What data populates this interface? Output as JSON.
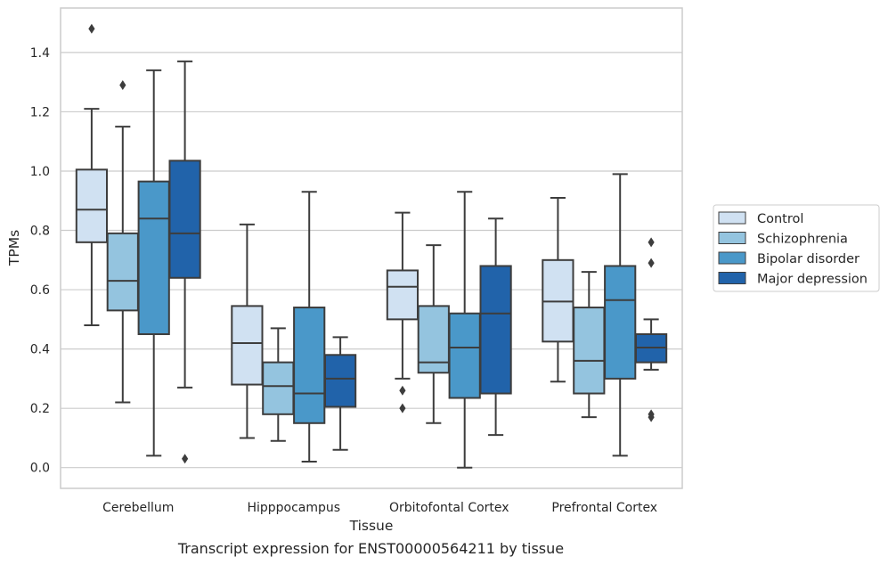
{
  "caption": "Transcript expression for ENST00000564211 by tissue",
  "chart_data": {
    "type": "box",
    "xlabel": "Tissue",
    "ylabel": "TPMs",
    "ylim": [
      -0.07,
      1.55
    ],
    "yticks": [
      "0.0",
      "0.2",
      "0.4",
      "0.6",
      "0.8",
      "1.0",
      "1.2",
      "1.4"
    ],
    "grid": true,
    "legend_position": "right",
    "categories": [
      "Cerebellum",
      "Hipppocampus",
      "Orbitofontal Cortex",
      "Prefrontal Cortex"
    ],
    "series": [
      {
        "name": "Control",
        "color": "#d0e1f2",
        "boxes": [
          {
            "whisker_low": 0.48,
            "q1": 0.76,
            "median": 0.87,
            "q3": 1.005,
            "whisker_high": 1.21,
            "outliers": [
              1.48
            ]
          },
          {
            "whisker_low": 0.1,
            "q1": 0.28,
            "median": 0.42,
            "q3": 0.545,
            "whisker_high": 0.82,
            "outliers": []
          },
          {
            "whisker_low": 0.3,
            "q1": 0.5,
            "median": 0.61,
            "q3": 0.665,
            "whisker_high": 0.86,
            "outliers": [
              0.26,
              0.2
            ]
          },
          {
            "whisker_low": 0.29,
            "q1": 0.425,
            "median": 0.56,
            "q3": 0.7,
            "whisker_high": 0.91,
            "outliers": []
          }
        ]
      },
      {
        "name": "Schizophrenia",
        "color": "#94c4df",
        "boxes": [
          {
            "whisker_low": 0.22,
            "q1": 0.53,
            "median": 0.63,
            "q3": 0.79,
            "whisker_high": 1.15,
            "outliers": [
              1.29
            ]
          },
          {
            "whisker_low": 0.09,
            "q1": 0.18,
            "median": 0.275,
            "q3": 0.355,
            "whisker_high": 0.47,
            "outliers": []
          },
          {
            "whisker_low": 0.15,
            "q1": 0.32,
            "median": 0.355,
            "q3": 0.545,
            "whisker_high": 0.75,
            "outliers": []
          },
          {
            "whisker_low": 0.17,
            "q1": 0.25,
            "median": 0.36,
            "q3": 0.54,
            "whisker_high": 0.66,
            "outliers": []
          }
        ]
      },
      {
        "name": "Bipolar disorder",
        "color": "#4a98c9",
        "boxes": [
          {
            "whisker_low": 0.04,
            "q1": 0.45,
            "median": 0.84,
            "q3": 0.965,
            "whisker_high": 1.34,
            "outliers": []
          },
          {
            "whisker_low": 0.02,
            "q1": 0.15,
            "median": 0.25,
            "q3": 0.54,
            "whisker_high": 0.93,
            "outliers": []
          },
          {
            "whisker_low": 0.0,
            "q1": 0.235,
            "median": 0.405,
            "q3": 0.52,
            "whisker_high": 0.93,
            "outliers": []
          },
          {
            "whisker_low": 0.04,
            "q1": 0.3,
            "median": 0.565,
            "q3": 0.68,
            "whisker_high": 0.99,
            "outliers": []
          }
        ]
      },
      {
        "name": "Major depression",
        "color": "#2163aa",
        "boxes": [
          {
            "whisker_low": 0.27,
            "q1": 0.64,
            "median": 0.79,
            "q3": 1.035,
            "whisker_high": 1.37,
            "outliers": [
              0.03
            ]
          },
          {
            "whisker_low": 0.06,
            "q1": 0.205,
            "median": 0.3,
            "q3": 0.38,
            "whisker_high": 0.44,
            "outliers": []
          },
          {
            "whisker_low": 0.11,
            "q1": 0.25,
            "median": 0.52,
            "q3": 0.68,
            "whisker_high": 0.84,
            "outliers": []
          },
          {
            "whisker_low": 0.33,
            "q1": 0.355,
            "median": 0.405,
            "q3": 0.45,
            "whisker_high": 0.5,
            "outliers": [
              0.76,
              0.69,
              0.18,
              0.17
            ]
          }
        ]
      }
    ]
  }
}
